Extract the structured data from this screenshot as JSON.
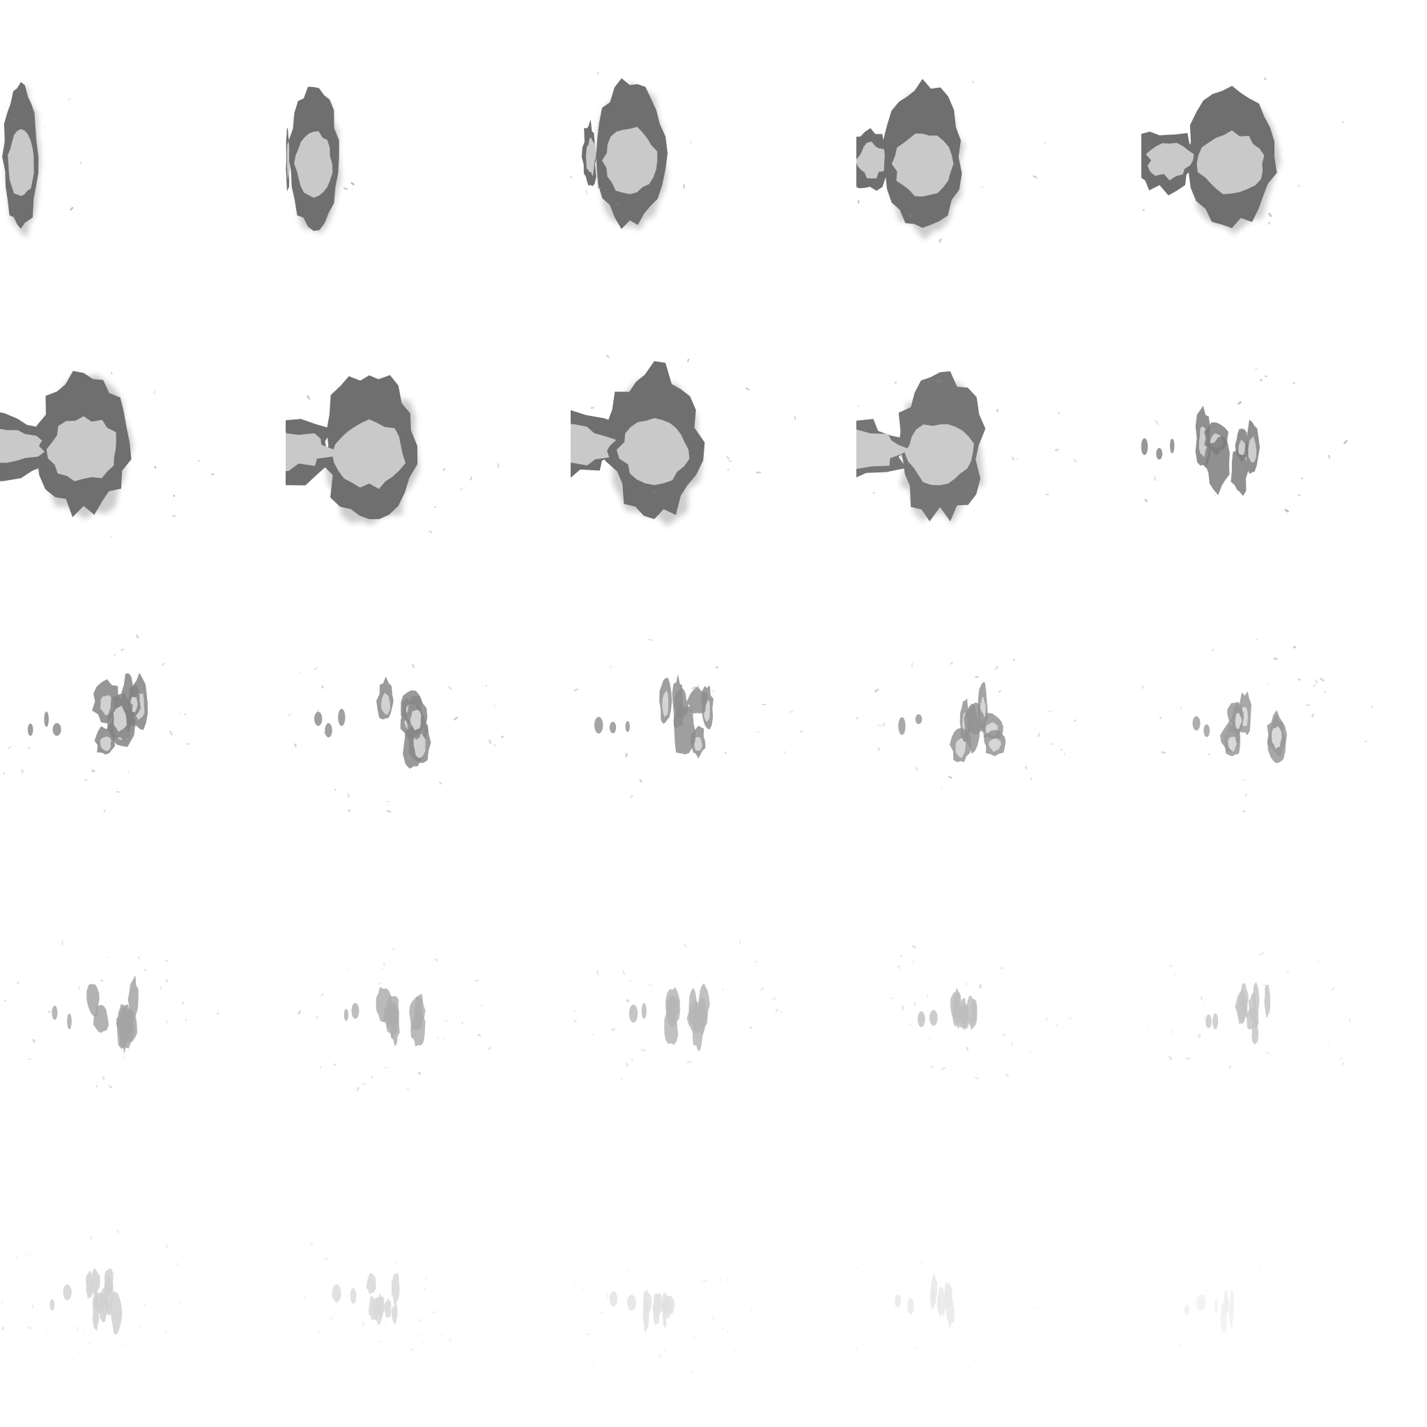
{
  "sprite_sheet": {
    "grid": {
      "columns": 5,
      "rows": 5
    },
    "frame_count": 25,
    "colors": {
      "background": "#ffffff",
      "smoke_dark": "#6f6f6f",
      "smoke_light": "#c9c9c9",
      "debris": "#8a8a8a"
    },
    "frames": [
      {
        "index": 1,
        "stage": "burst",
        "intensity": 1.0
      },
      {
        "index": 2,
        "stage": "burst",
        "intensity": 1.0
      },
      {
        "index": 3,
        "stage": "expanding",
        "intensity": 1.0
      },
      {
        "index": 4,
        "stage": "expanding",
        "intensity": 1.0
      },
      {
        "index": 5,
        "stage": "expanding",
        "intensity": 1.0
      },
      {
        "index": 6,
        "stage": "trailing",
        "intensity": 1.0
      },
      {
        "index": 7,
        "stage": "trailing",
        "intensity": 1.0
      },
      {
        "index": 8,
        "stage": "trailing",
        "intensity": 1.0
      },
      {
        "index": 9,
        "stage": "trailing",
        "intensity": 0.95
      },
      {
        "index": 10,
        "stage": "breaking",
        "intensity": 0.9
      },
      {
        "index": 11,
        "stage": "breaking",
        "intensity": 0.85
      },
      {
        "index": 12,
        "stage": "breaking",
        "intensity": 0.82
      },
      {
        "index": 13,
        "stage": "breaking",
        "intensity": 0.78
      },
      {
        "index": 14,
        "stage": "breaking",
        "intensity": 0.74
      },
      {
        "index": 15,
        "stage": "breaking",
        "intensity": 0.7
      },
      {
        "index": 16,
        "stage": "fading",
        "intensity": 0.62
      },
      {
        "index": 17,
        "stage": "fading",
        "intensity": 0.56
      },
      {
        "index": 18,
        "stage": "fading",
        "intensity": 0.5
      },
      {
        "index": 19,
        "stage": "fading",
        "intensity": 0.44
      },
      {
        "index": 20,
        "stage": "fading",
        "intensity": 0.4
      },
      {
        "index": 21,
        "stage": "dissipate",
        "intensity": 0.32
      },
      {
        "index": 22,
        "stage": "dissipate",
        "intensity": 0.26
      },
      {
        "index": 23,
        "stage": "dissipate",
        "intensity": 0.2
      },
      {
        "index": 24,
        "stage": "dissipate",
        "intensity": 0.15
      },
      {
        "index": 25,
        "stage": "dissipate",
        "intensity": 0.1
      }
    ]
  }
}
